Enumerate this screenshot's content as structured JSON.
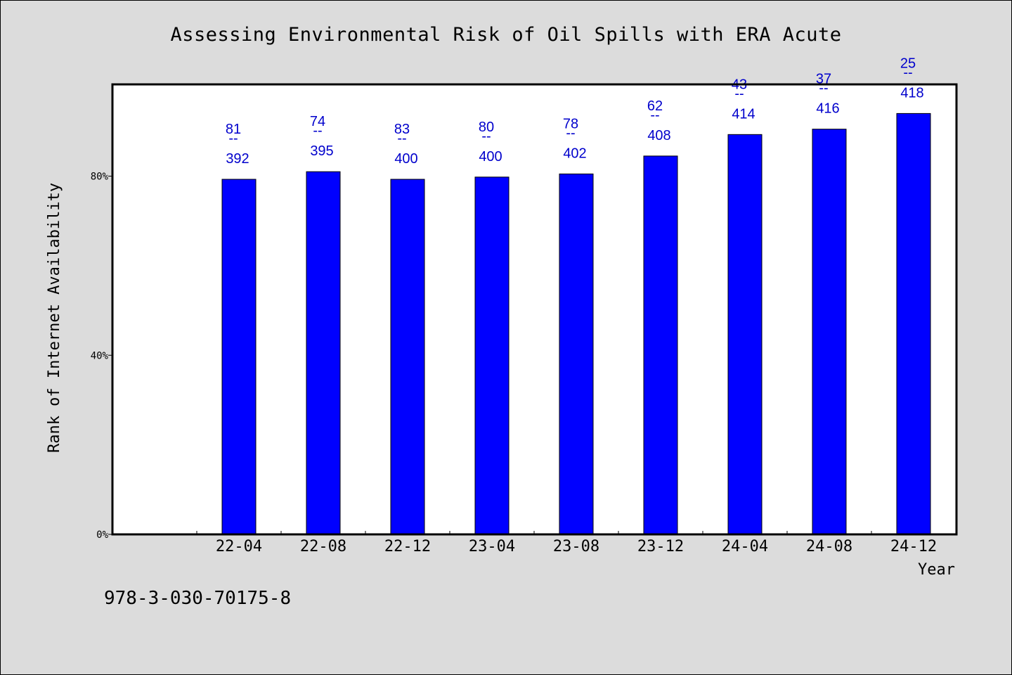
{
  "chart_data": {
    "type": "bar",
    "title": "Assessing Environmental Risk of Oil Spills with ERA Acute",
    "xlabel": "Year",
    "ylabel": "Rank of Internet Availability",
    "categories": [
      "22-04",
      "22-08",
      "22-12",
      "23-04",
      "23-08",
      "23-12",
      "24-04",
      "24-08",
      "24-12"
    ],
    "values": [
      79.3,
      81.0,
      79.3,
      79.8,
      80.5,
      84.5,
      89.3,
      90.5,
      94.0
    ],
    "data_labels": [
      {
        "top": "81",
        "sep": "--",
        "bottom": "392"
      },
      {
        "top": "74",
        "sep": "--",
        "bottom": "395"
      },
      {
        "top": "83",
        "sep": "--",
        "bottom": "400"
      },
      {
        "top": "80",
        "sep": "--",
        "bottom": "400"
      },
      {
        "top": "78",
        "sep": "--",
        "bottom": "402"
      },
      {
        "top": "62",
        "sep": "--",
        "bottom": "408"
      },
      {
        "top": "43",
        "sep": "--",
        "bottom": "414"
      },
      {
        "top": "37",
        "sep": "--",
        "bottom": "416"
      },
      {
        "top": "25",
        "sep": "--",
        "bottom": "418"
      }
    ],
    "y_ticks": [
      {
        "value": 0,
        "label": "0%"
      },
      {
        "value": 40,
        "label": "40%"
      },
      {
        "value": 80,
        "label": "80%"
      }
    ],
    "ylim": [
      0,
      100.5
    ],
    "bar_color": "#0000ff",
    "label_color": "#0000cc",
    "plot_background": "#ffffff",
    "page_background": "#dcdcdc",
    "grid": false,
    "legend": "none"
  },
  "footer": {
    "isbn": "978-3-030-70175-8"
  }
}
